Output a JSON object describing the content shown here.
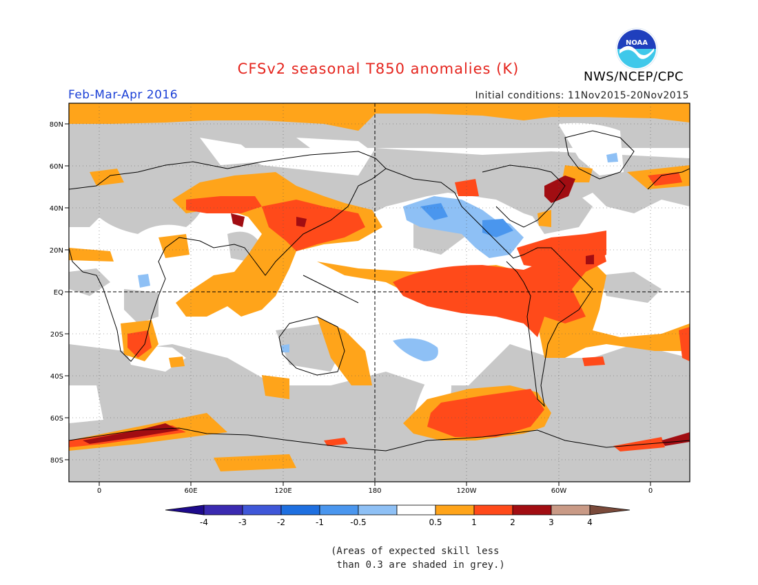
{
  "header": {
    "title": "CFSv2 seasonal T850 anomalies (K)",
    "agency": "NWS/NCEP/CPC",
    "logo_text": "NOAA",
    "season": "Feb-Mar-Apr 2016",
    "initial_conditions": "Initial conditions: 11Nov2015-20Nov2015"
  },
  "axes": {
    "lat_labels": [
      "80N",
      "60N",
      "40N",
      "20N",
      "EQ",
      "20S",
      "40S",
      "60S",
      "80S"
    ],
    "lon_labels": [
      "0",
      "60E",
      "120E",
      "180",
      "120W",
      "60W",
      "0"
    ]
  },
  "colorbar": {
    "ticks": [
      "-4",
      "-3",
      "-2",
      "-1",
      "-0.5",
      "0.5",
      "1",
      "2",
      "3",
      "4"
    ],
    "colors": [
      "#3a2ab0",
      "#3f57d8",
      "#1e6fe0",
      "#4a96ee",
      "#8ec0f5",
      "#ffffff",
      "#ffa41a",
      "#ff4a1a",
      "#a10d12",
      "#c99a86"
    ],
    "low_end": "#1e0a8c",
    "high_end": "#7a4a3a"
  },
  "legend_colors": {
    "grey_skill": "#c8c8c8",
    "weak_warm": "#ffa41a",
    "warm": "#ff4a1a",
    "strong_warm": "#a10d12",
    "weak_cold": "#8ec0f5",
    "cold": "#4a96ee"
  },
  "note": "(Areas of expected skill less\n than 0.3 are shaded in grey.)"
}
